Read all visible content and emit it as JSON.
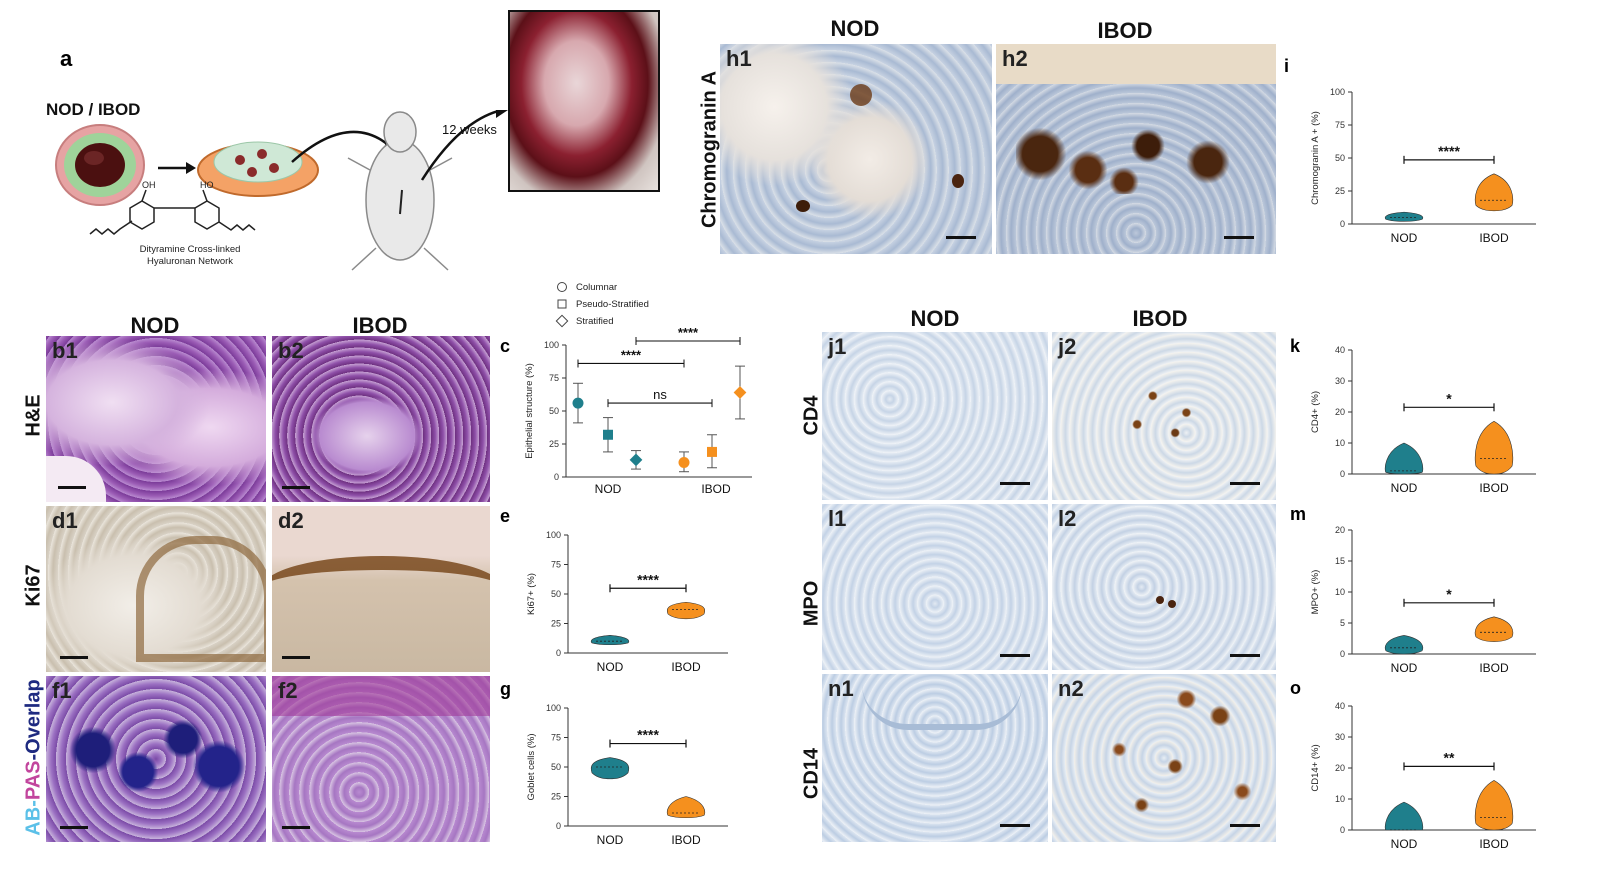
{
  "panel_a": {
    "letter": "a",
    "group_label": "NOD / IBOD",
    "hydrogel_caption_1": "Dityramine Cross-linked",
    "hydrogel_caption_2": "Hyaluronan Network",
    "oh_label": "OH",
    "ho_label": "HO",
    "duration": "12 weeks"
  },
  "column_headers": {
    "top_nod": "NOD",
    "top_ibod": "IBOD",
    "left_nod": "NOD",
    "left_ibod": "IBOD",
    "right_nod": "NOD",
    "right_ibod": "IBOD"
  },
  "row_labels": {
    "chromogranin": "Chromogranin A",
    "he": "H&E",
    "ki67": "Ki67",
    "ab": "AB",
    "dash": "-",
    "pas": "PAS",
    "overlap": "-Overlap",
    "cd4": "CD4",
    "mpo": "MPO",
    "cd14": "CD14"
  },
  "micro_tags": {
    "h1": "h1",
    "h2": "h2",
    "b1": "b1",
    "b2": "b2",
    "d1": "d1",
    "d2": "d2",
    "f1": "f1",
    "f2": "f2",
    "j1": "j1",
    "j2": "j2",
    "l1": "l1",
    "l2": "l2",
    "n1": "n1",
    "n2": "n2"
  },
  "colors": {
    "nod": "#1f7f8c",
    "ibod": "#f5901e",
    "he_purple": "#8a4fa8",
    "ihc_blue": "#c9d6e6",
    "ihc_brown": "#6b3a15",
    "ab_navy": "#2a2a8f"
  },
  "chart_data": [
    {
      "panel": "c",
      "type": "scatter",
      "ylabel": "Epithelial structure (%)",
      "ylim": [
        0,
        100
      ],
      "yticks": [
        "0",
        "25",
        "50",
        "75",
        "100"
      ],
      "groups": [
        "NOD",
        "IBOD"
      ],
      "legend": [
        "Columnar",
        "Pseudo-Stratified",
        "Stratified"
      ],
      "series": [
        {
          "name": "Columnar",
          "group": "NOD",
          "mean": 56,
          "low": 41,
          "high": 71
        },
        {
          "name": "Pseudo-Stratified",
          "group": "NOD",
          "mean": 32,
          "low": 19,
          "high": 45
        },
        {
          "name": "Stratified",
          "group": "NOD",
          "mean": 13,
          "low": 6,
          "high": 20
        },
        {
          "name": "Columnar",
          "group": "IBOD",
          "mean": 11,
          "low": 4,
          "high": 19
        },
        {
          "name": "Pseudo-Stratified",
          "group": "IBOD",
          "mean": 19,
          "low": 7,
          "high": 32
        },
        {
          "name": "Stratified",
          "group": "IBOD",
          "mean": 64,
          "low": 44,
          "high": 84
        }
      ],
      "significance": [
        "****",
        "****",
        "ns"
      ]
    },
    {
      "panel": "e",
      "type": "violin",
      "ylabel": "Ki67+ (%)",
      "ylim": [
        0,
        100
      ],
      "yticks": [
        "0",
        "25",
        "50",
        "75",
        "100"
      ],
      "categories": [
        "NOD",
        "IBOD"
      ],
      "values": [
        {
          "min": 7,
          "median": 10,
          "max": 15
        },
        {
          "min": 29,
          "median": 37,
          "max": 43
        }
      ],
      "significance": "****"
    },
    {
      "panel": "g",
      "type": "violin",
      "ylabel": "Goblet cells (%)",
      "ylim": [
        0,
        100
      ],
      "yticks": [
        "0",
        "25",
        "50",
        "75",
        "100"
      ],
      "categories": [
        "NOD",
        "IBOD"
      ],
      "values": [
        {
          "min": 40,
          "median": 50,
          "max": 58
        },
        {
          "min": 7,
          "median": 11,
          "max": 25
        }
      ],
      "significance": "****"
    },
    {
      "panel": "i",
      "type": "violin",
      "ylabel": "Chromogranin A + (%)",
      "ylim": [
        0,
        100
      ],
      "yticks": [
        "0",
        "25",
        "50",
        "75",
        "100"
      ],
      "categories": [
        "NOD",
        "IBOD"
      ],
      "values": [
        {
          "min": 2,
          "median": 5,
          "max": 9
        },
        {
          "min": 10,
          "median": 18,
          "max": 38
        }
      ],
      "significance": "****"
    },
    {
      "panel": "k",
      "type": "violin",
      "ylabel": "CD4+ (%)",
      "ylim": [
        0,
        40
      ],
      "yticks": [
        "0",
        "10",
        "20",
        "30",
        "40"
      ],
      "categories": [
        "NOD",
        "IBOD"
      ],
      "values": [
        {
          "min": 0,
          "median": 1,
          "max": 10
        },
        {
          "min": 0,
          "median": 5,
          "max": 17
        }
      ],
      "significance": "*"
    },
    {
      "panel": "m",
      "type": "violin",
      "ylabel": "MPO+ (%)",
      "ylim": [
        0,
        20
      ],
      "yticks": [
        "0",
        "5",
        "10",
        "15",
        "20"
      ],
      "categories": [
        "NOD",
        "IBOD"
      ],
      "values": [
        {
          "min": 0,
          "median": 1,
          "max": 3
        },
        {
          "min": 2,
          "median": 3.5,
          "max": 6
        }
      ],
      "significance": "*"
    },
    {
      "panel": "o",
      "type": "violin",
      "ylabel": "CD14+ (%)",
      "ylim": [
        0,
        40
      ],
      "yticks": [
        "0",
        "10",
        "20",
        "30",
        "40"
      ],
      "categories": [
        "NOD",
        "IBOD"
      ],
      "values": [
        {
          "min": 0,
          "median": 0,
          "max": 9
        },
        {
          "min": 0,
          "median": 4,
          "max": 16
        }
      ],
      "significance": "**"
    }
  ]
}
